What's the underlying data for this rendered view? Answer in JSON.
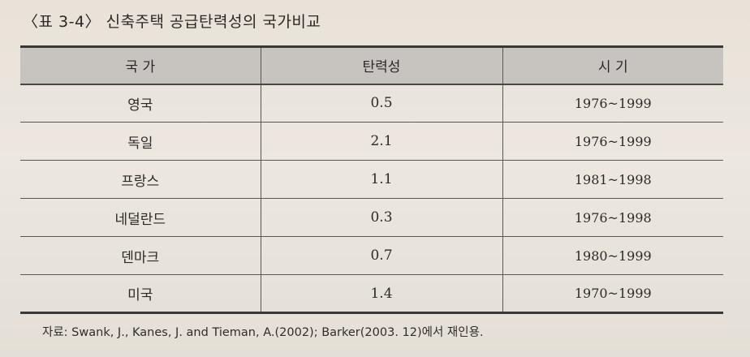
{
  "caption": "〈표 3-4〉 신축주택 공급탄력성의 국가비교",
  "table": {
    "headers": [
      "국 가",
      "탄력성",
      "시 기"
    ],
    "rows": [
      {
        "country": "영국",
        "elasticity": "0.5",
        "period": "1976~1999"
      },
      {
        "country": "독일",
        "elasticity": "2.1",
        "period": "1976~1999"
      },
      {
        "country": "프랑스",
        "elasticity": "1.1",
        "period": "1981~1998"
      },
      {
        "country": "네덜란드",
        "elasticity": "0.3",
        "period": "1976~1998"
      },
      {
        "country": "덴마크",
        "elasticity": "0.7",
        "period": "1980~1999"
      },
      {
        "country": "미국",
        "elasticity": "1.4",
        "period": "1970~1999"
      }
    ]
  },
  "source": "자료: Swank, J., Kanes, J. and Tieman, A.(2002); Barker(2003. 12)에서 재인용."
}
